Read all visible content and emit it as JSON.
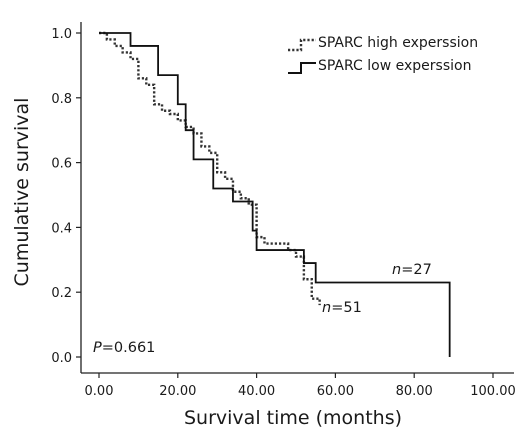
{
  "chart_data": {
    "type": "line",
    "xlabel": "Survival time (months)",
    "ylabel": "Cumulative survival",
    "xlim": [
      0,
      100
    ],
    "ylim": [
      0,
      1.0
    ],
    "x_ticks": [
      "0.00",
      "20.00",
      "40.00",
      "60.00",
      "80.00",
      "100.00"
    ],
    "y_ticks": [
      "0.0",
      "0.2",
      "0.4",
      "0.6",
      "0.8",
      "1.0"
    ],
    "legend_position": "top-right",
    "grid": false,
    "series": [
      {
        "name": "SPARC high experssion",
        "style": "dotted",
        "color": "#333333",
        "x": [
          0,
          2,
          4,
          6,
          8,
          10,
          12,
          14,
          16,
          18,
          20,
          22,
          24,
          26,
          28,
          30,
          32,
          34,
          36,
          38,
          40,
          42,
          44,
          46,
          48,
          50,
          52,
          54,
          56
        ],
        "y": [
          1.0,
          0.98,
          0.96,
          0.94,
          0.92,
          0.86,
          0.84,
          0.78,
          0.76,
          0.75,
          0.73,
          0.71,
          0.69,
          0.65,
          0.63,
          0.57,
          0.55,
          0.51,
          0.49,
          0.47,
          0.37,
          0.35,
          0.35,
          0.35,
          0.33,
          0.31,
          0.24,
          0.18,
          0.16
        ]
      },
      {
        "name": "SPARC low experssion",
        "style": "solid",
        "color": "#111111",
        "x": [
          0,
          8,
          15,
          20,
          22,
          24,
          29,
          34,
          39,
          40,
          52,
          55,
          59,
          89
        ],
        "y": [
          1.0,
          0.96,
          0.87,
          0.78,
          0.7,
          0.61,
          0.52,
          0.48,
          0.39,
          0.33,
          0.29,
          0.23,
          0.23,
          0.0
        ]
      }
    ],
    "annotations": {
      "p_prefix": "P",
      "p_value": "=0.661",
      "n_high_prefix": "n",
      "n_high_value": "=51",
      "n_low_prefix": "n",
      "n_low_value": "=27"
    }
  }
}
